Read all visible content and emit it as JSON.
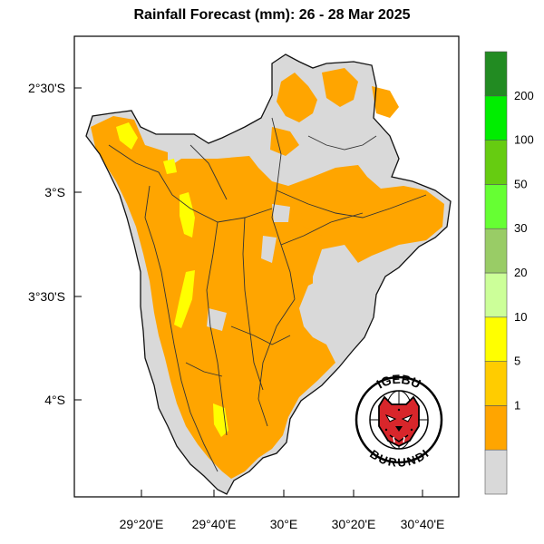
{
  "title": "Rainfall Forecast (mm): 26 - 28 Mar  2025",
  "map": {
    "lat_ticks": [
      "2°30'S",
      "3°S",
      "3°30'S",
      "4°S"
    ],
    "lon_ticks": [
      "29°20'E",
      "29°40'E",
      "30°E",
      "30°20'E",
      "30°40'E"
    ]
  },
  "legend": {
    "bins": [
      {
        "label": "",
        "color": "#d9d9d9"
      },
      {
        "label": "1",
        "color": "#ffa500"
      },
      {
        "label": "5",
        "color": "#ffcc00"
      },
      {
        "label": "10",
        "color": "#ffff00"
      },
      {
        "label": "20",
        "color": "#ccff99"
      },
      {
        "label": "30",
        "color": "#99cc66"
      },
      {
        "label": "50",
        "color": "#66ff33"
      },
      {
        "label": "100",
        "color": "#66cc11"
      },
      {
        "label": "200",
        "color": "#00ee00"
      },
      {
        "label": "",
        "color": "#228b22"
      }
    ]
  },
  "logo": {
    "top_text": "IGEBU",
    "bottom_text": "BURUNDI",
    "icon": "leopard-head-icon"
  },
  "colors": {
    "dry": "#d9d9d9",
    "light_rain": "#ffa500",
    "moderate_rain": "#ffff00",
    "boundary": "#222222"
  }
}
